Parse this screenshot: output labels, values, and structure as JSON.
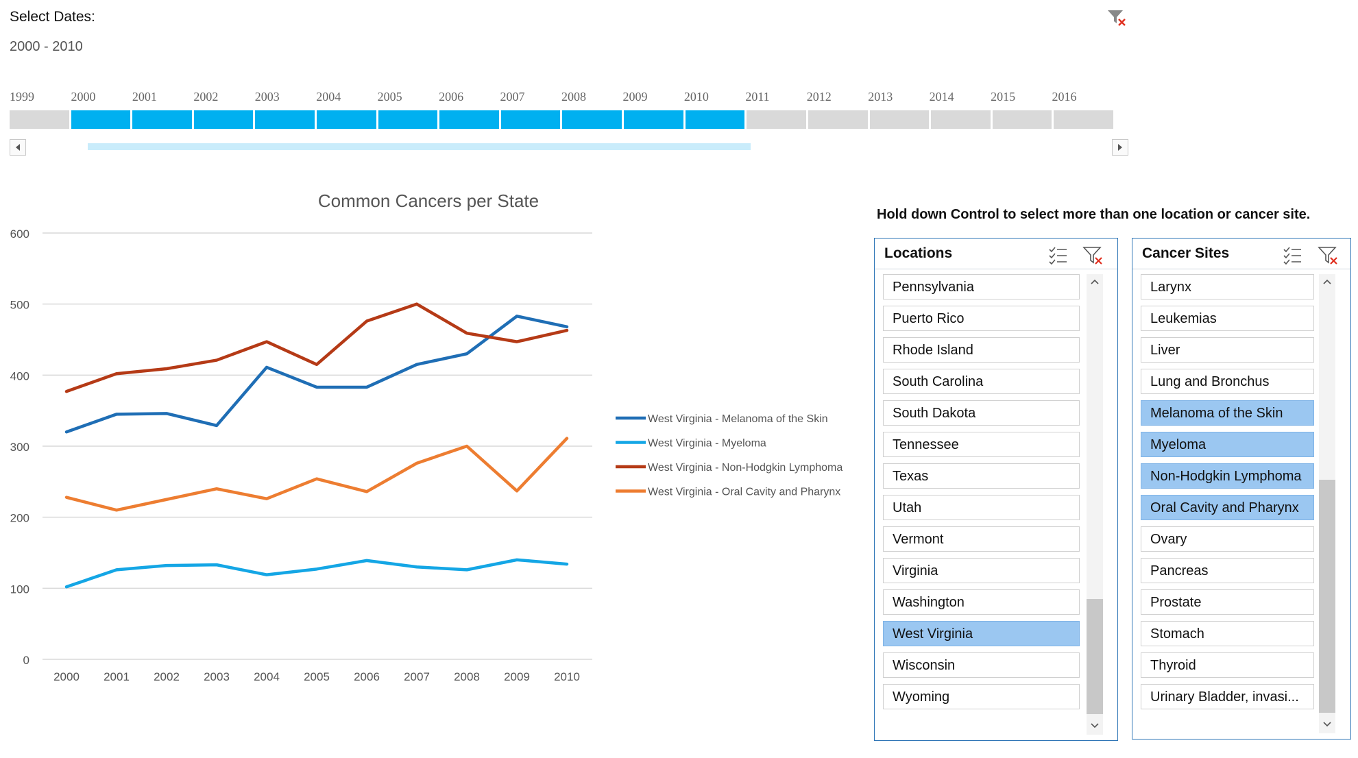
{
  "timeline": {
    "title": "Select Dates:",
    "range_label": "2000 - 2010",
    "years": [
      "1999",
      "2000",
      "2001",
      "2002",
      "2003",
      "2004",
      "2005",
      "2006",
      "2007",
      "2008",
      "2009",
      "2010",
      "2011",
      "2012",
      "2013",
      "2014",
      "2015",
      "2016"
    ],
    "selected_start": "2000",
    "selected_end": "2010",
    "selected_color": "#00b0f0",
    "unselected_color": "#d9d9d9"
  },
  "instruction": "Hold down Control to select more than one location or cancer site.",
  "locations": {
    "title": "Locations",
    "items": [
      "Pennsylvania",
      "Puerto Rico",
      "Rhode Island",
      "South Carolina",
      "South Dakota",
      "Tennessee",
      "Texas",
      "Utah",
      "Vermont",
      "Virginia",
      "Washington",
      "West Virginia",
      "Wisconsin",
      "Wyoming"
    ],
    "selected": [
      "West Virginia"
    ]
  },
  "cancer_sites": {
    "title": "Cancer Sites",
    "items": [
      "Larynx",
      "Leukemias",
      "Liver",
      "Lung and Bronchus",
      "Melanoma of the Skin",
      "Myeloma",
      "Non-Hodgkin Lymphoma",
      "Oral Cavity and Pharynx",
      "Ovary",
      "Pancreas",
      "Prostate",
      "Stomach",
      "Thyroid",
      "Urinary Bladder, invasi..."
    ],
    "selected": [
      "Melanoma of the Skin",
      "Myeloma",
      "Non-Hodgkin Lymphoma",
      "Oral Cavity and Pharynx"
    ]
  },
  "icons": {
    "timeline_clear": "clear-filter-icon",
    "multiselect": "multi-select-icon",
    "clear": "clear-filter-icon",
    "scroll_up": "chevron-up-icon",
    "scroll_down": "chevron-down-icon",
    "scroll_left": "triangle-left-icon",
    "scroll_right": "triangle-right-icon"
  },
  "chart_data": {
    "type": "line",
    "title": "Common Cancers per State",
    "x": [
      "2000",
      "2001",
      "2002",
      "2003",
      "2004",
      "2005",
      "2006",
      "2007",
      "2008",
      "2009",
      "2010"
    ],
    "ylim": [
      0,
      600
    ],
    "yticks": [
      0,
      100,
      200,
      300,
      400,
      500,
      600
    ],
    "grid": true,
    "legend_position": "right",
    "series": [
      {
        "name": "West Virginia - Melanoma of the Skin",
        "color": "#1f6eb5",
        "values": [
          320,
          345,
          346,
          329,
          411,
          383,
          383,
          415,
          430,
          483,
          468
        ]
      },
      {
        "name": "West Virginia - Myeloma",
        "color": "#14a6e5",
        "values": [
          102,
          126,
          132,
          133,
          119,
          127,
          139,
          130,
          126,
          140,
          134
        ]
      },
      {
        "name": "West Virginia - Non-Hodgkin Lymphoma",
        "color": "#b53a16",
        "values": [
          377,
          402,
          409,
          421,
          447,
          415,
          476,
          500,
          459,
          447,
          463
        ]
      },
      {
        "name": "West Virginia - Oral Cavity and Pharynx",
        "color": "#ed7d31",
        "values": [
          228,
          210,
          225,
          240,
          226,
          254,
          236,
          276,
          300,
          237,
          311
        ]
      }
    ]
  }
}
